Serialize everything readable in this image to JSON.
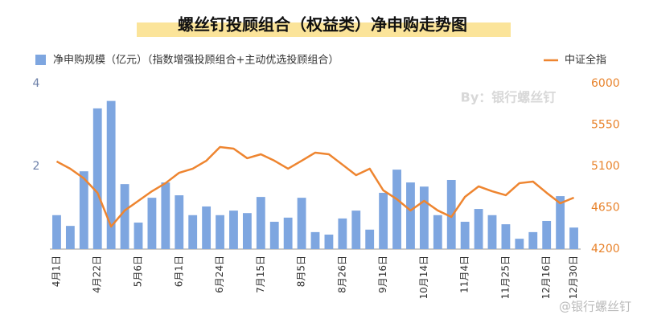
{
  "chart_data": {
    "type": "bar_line",
    "title": "螺丝钉投顾组合（权益类）净申购走势图",
    "annotations": [
      "By：银行螺丝钉",
      "@银行螺丝钉"
    ],
    "categories": [
      "4月1日",
      null,
      null,
      "4月22日",
      null,
      null,
      "5月6日",
      null,
      null,
      "6月1日",
      null,
      null,
      "6月24日",
      null,
      null,
      "7月15日",
      null,
      null,
      "8月5日",
      null,
      null,
      "8月26日",
      null,
      null,
      "9月16日",
      null,
      null,
      "10月14日",
      null,
      null,
      "11月4日",
      null,
      null,
      "11月25日",
      null,
      null,
      "12月16日",
      null,
      "12月30日"
    ],
    "series": [
      {
        "name": "净申购规模（亿元）（指数增强投顾组合+主动优选投顾组合）",
        "type": "bar",
        "color": "#7ea6e0",
        "axis": "y",
        "values": [
          0.82,
          0.56,
          1.88,
          3.4,
          3.58,
          1.57,
          0.64,
          1.24,
          1.61,
          1.3,
          0.82,
          1.03,
          0.82,
          0.93,
          0.87,
          1.26,
          0.66,
          0.76,
          1.24,
          0.41,
          0.35,
          0.74,
          0.93,
          0.47,
          1.36,
          1.92,
          1.61,
          1.51,
          0.82,
          1.67,
          0.66,
          0.97,
          0.82,
          0.6,
          0.25,
          0.41,
          0.68,
          1.28,
          0.52
        ]
      },
      {
        "name": "中证全指",
        "type": "line",
        "color": "#ee8530",
        "axis": "y2",
        "values": [
          5153,
          5074,
          4969,
          4812,
          4445,
          4620,
          4724,
          4829,
          4917,
          5030,
          5074,
          5161,
          5310,
          5292,
          5188,
          5231,
          5161,
          5074,
          5161,
          5249,
          5231,
          5118,
          5004,
          5074,
          4838,
          4742,
          4620,
          4724,
          4620,
          4550,
          4768,
          4882,
          4829,
          4786,
          4917,
          4934,
          4812,
          4698,
          4759
        ]
      }
    ],
    "ylim": [
      0,
      4
    ],
    "yticks": [
      2,
      4
    ],
    "y2lim": [
      4200,
      6000
    ],
    "y2ticks": [
      4200,
      4650,
      5100,
      5550,
      6000
    ]
  }
}
